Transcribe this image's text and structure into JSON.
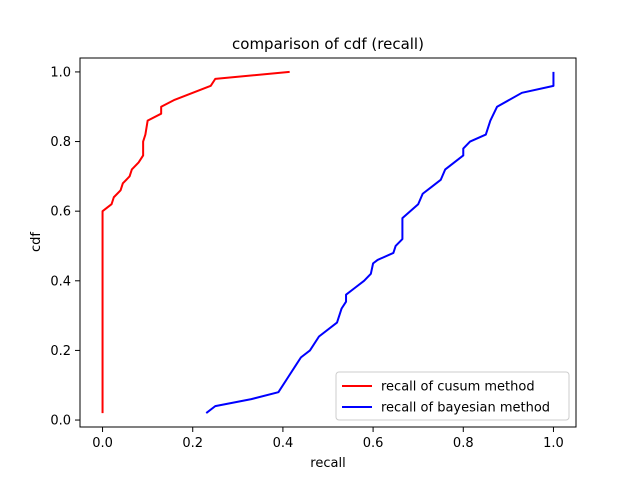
{
  "chart_data": {
    "type": "line",
    "title": "comparison of cdf (recall)",
    "xlabel": "recall",
    "ylabel": "cdf",
    "xlim": [
      -0.05,
      1.05
    ],
    "ylim": [
      -0.02,
      1.04
    ],
    "x_ticks": [
      0.0,
      0.2,
      0.4,
      0.6,
      0.8,
      1.0
    ],
    "x_tick_labels": [
      "0.0",
      "0.2",
      "0.4",
      "0.6",
      "0.8",
      "1.0"
    ],
    "y_ticks": [
      0.0,
      0.2,
      0.4,
      0.6,
      0.8,
      1.0
    ],
    "y_tick_labels": [
      "0.0",
      "0.2",
      "0.4",
      "0.6",
      "0.8",
      "1.0"
    ],
    "grid": false,
    "legend_position": "bottom-right",
    "series": [
      {
        "name": "recall of cusum method",
        "color": "#ff0000",
        "points": [
          [
            0.0,
            0.02
          ],
          [
            0.0,
            0.6
          ],
          [
            0.01,
            0.61
          ],
          [
            0.02,
            0.62
          ],
          [
            0.025,
            0.64
          ],
          [
            0.04,
            0.66
          ],
          [
            0.045,
            0.68
          ],
          [
            0.06,
            0.7
          ],
          [
            0.065,
            0.72
          ],
          [
            0.08,
            0.74
          ],
          [
            0.09,
            0.76
          ],
          [
            0.09,
            0.8
          ],
          [
            0.095,
            0.82
          ],
          [
            0.1,
            0.86
          ],
          [
            0.13,
            0.88
          ],
          [
            0.13,
            0.9
          ],
          [
            0.16,
            0.92
          ],
          [
            0.24,
            0.96
          ],
          [
            0.25,
            0.98
          ],
          [
            0.415,
            1.0
          ]
        ]
      },
      {
        "name": "recall of bayesian method",
        "color": "#0000ff",
        "points": [
          [
            0.23,
            0.02
          ],
          [
            0.25,
            0.04
          ],
          [
            0.33,
            0.06
          ],
          [
            0.39,
            0.08
          ],
          [
            0.41,
            0.12
          ],
          [
            0.43,
            0.16
          ],
          [
            0.44,
            0.18
          ],
          [
            0.46,
            0.2
          ],
          [
            0.48,
            0.24
          ],
          [
            0.52,
            0.28
          ],
          [
            0.53,
            0.32
          ],
          [
            0.54,
            0.34
          ],
          [
            0.54,
            0.36
          ],
          [
            0.56,
            0.38
          ],
          [
            0.58,
            0.4
          ],
          [
            0.595,
            0.42
          ],
          [
            0.6,
            0.45
          ],
          [
            0.61,
            0.46
          ],
          [
            0.645,
            0.48
          ],
          [
            0.65,
            0.5
          ],
          [
            0.665,
            0.52
          ],
          [
            0.665,
            0.58
          ],
          [
            0.7,
            0.62
          ],
          [
            0.71,
            0.65
          ],
          [
            0.73,
            0.67
          ],
          [
            0.75,
            0.69
          ],
          [
            0.76,
            0.72
          ],
          [
            0.78,
            0.74
          ],
          [
            0.8,
            0.76
          ],
          [
            0.8,
            0.78
          ],
          [
            0.815,
            0.8
          ],
          [
            0.85,
            0.82
          ],
          [
            0.86,
            0.86
          ],
          [
            0.875,
            0.9
          ],
          [
            0.93,
            0.94
          ],
          [
            1.0,
            0.96
          ],
          [
            1.0,
            1.0
          ]
        ]
      }
    ]
  }
}
